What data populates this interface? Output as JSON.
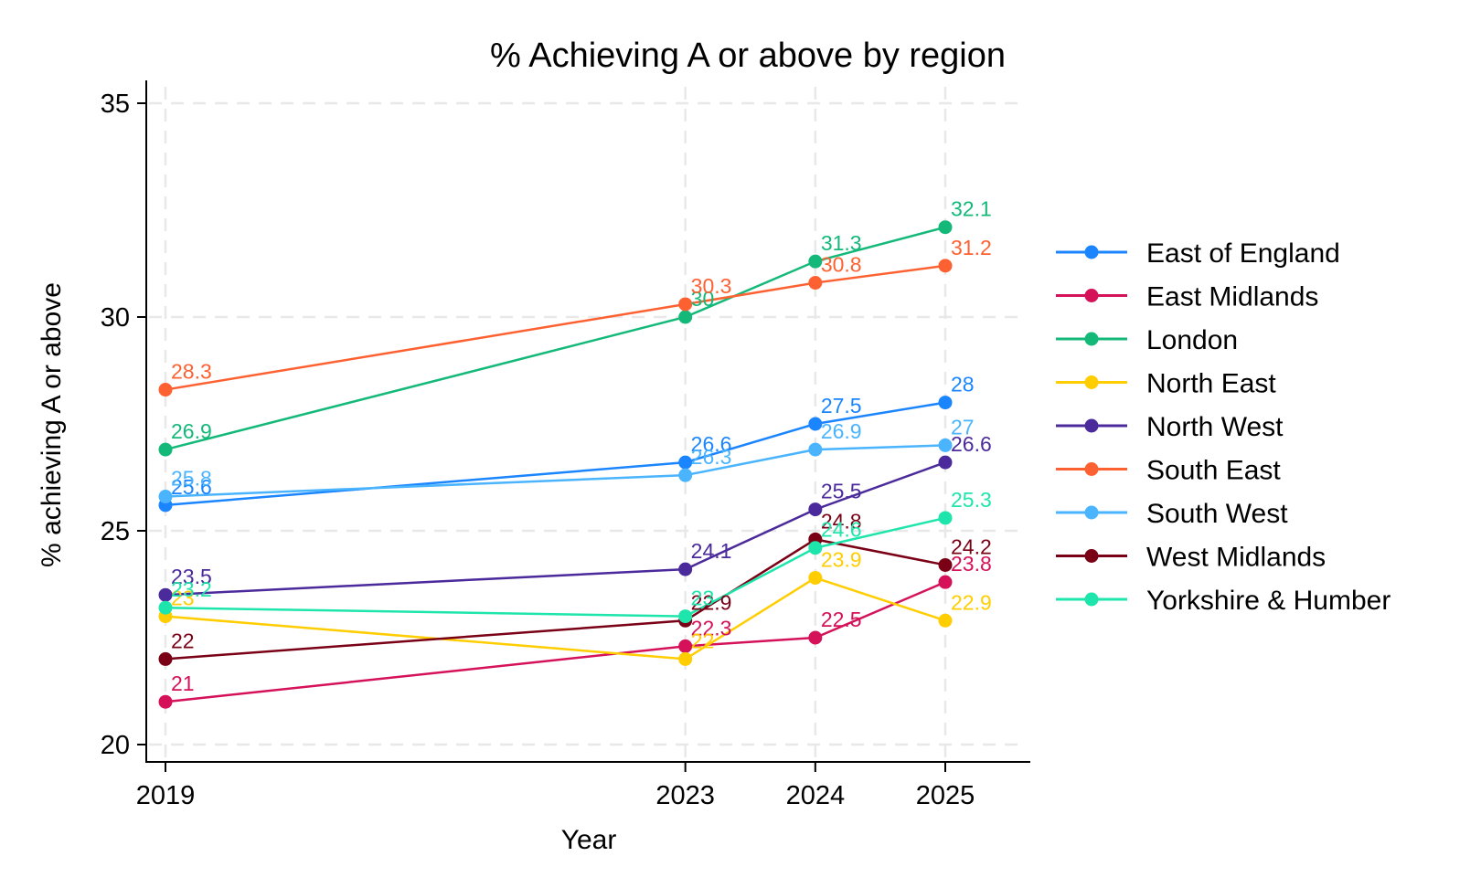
{
  "chart_data": {
    "type": "line",
    "title": "% Achieving A or above by region",
    "xlabel": "Year",
    "ylabel": "% achieving A or above",
    "x": [
      2019,
      2023,
      2024,
      2025
    ],
    "x_tick_labels": [
      "2019",
      "2023",
      "2024",
      "2025"
    ],
    "y_ticks": [
      20,
      25,
      30,
      35
    ],
    "y_tick_labels": [
      "20",
      "25",
      "30",
      "35"
    ],
    "xlim": [
      2018.85,
      2025.65
    ],
    "ylim": [
      19.55,
      35.5
    ],
    "grid": true,
    "legend_position": "right",
    "series": [
      {
        "name": "East of England",
        "color": "#1a85ff",
        "values": [
          25.6,
          26.6,
          27.5,
          28
        ],
        "labels": [
          "25.6",
          "26.6",
          "27.5",
          "28"
        ]
      },
      {
        "name": "East Midlands",
        "color": "#d41159",
        "values": [
          21,
          22.3,
          22.5,
          23.8
        ],
        "labels": [
          "21",
          "22.3",
          "22.5",
          "23.8"
        ]
      },
      {
        "name": "London",
        "color": "#14b97a",
        "values": [
          26.9,
          30,
          31.3,
          32.1
        ],
        "labels": [
          "26.9",
          "30",
          "31.3",
          "32.1"
        ]
      },
      {
        "name": "North East",
        "color": "#ffcd00",
        "values": [
          23,
          22,
          23.9,
          22.9
        ],
        "labels": [
          "23",
          "22",
          "23.9",
          "22.9"
        ]
      },
      {
        "name": "North West",
        "color": "#4b2a9b",
        "values": [
          23.5,
          24.1,
          25.5,
          26.6
        ],
        "labels": [
          "23.5",
          "24.1",
          "25.5",
          "26.6"
        ]
      },
      {
        "name": "South East",
        "color": "#fe6131",
        "values": [
          28.3,
          30.3,
          30.8,
          31.2
        ],
        "labels": [
          "28.3",
          "30.3",
          "30.8",
          "31.2"
        ]
      },
      {
        "name": "South West",
        "color": "#4ab4ff",
        "values": [
          25.8,
          26.3,
          26.9,
          27
        ],
        "labels": [
          "25.8",
          "26.3",
          "26.9",
          "27"
        ]
      },
      {
        "name": "West Midlands",
        "color": "#7a0016",
        "values": [
          22,
          22.9,
          24.8,
          24.2
        ],
        "labels": [
          "22",
          "22.9",
          "24.8",
          "24.2"
        ]
      },
      {
        "name": "Yorkshire & Humber",
        "color": "#1ee5ab",
        "values": [
          23.2,
          23,
          24.6,
          25.3
        ],
        "labels": [
          "23.2",
          "23",
          "24.6",
          "25.3"
        ]
      }
    ]
  }
}
